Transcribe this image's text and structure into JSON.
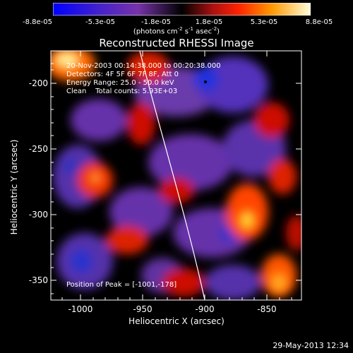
{
  "colorbar": {
    "ticks": [
      "-8.8e-05",
      "-5.3e-05",
      "-1.8e-05",
      "1.8e-05",
      "5.3e-05",
      "8.8e-05"
    ],
    "units_main": "(photons cm",
    "units_sup1": "-2",
    "units_mid": " s",
    "units_sup2": "-1",
    "units_mid2": " asec",
    "units_sup3": "-2",
    "units_end": ")"
  },
  "title": "Reconstructed RHESSI Image",
  "info": {
    "time_range": "20-Nov-2003 00:14:38.000 to 00:20:38.000",
    "detectors": "Detectors: 4F 5F 6F 7F 8F, Att 0",
    "energy": "Energy Range: 25.0 - 50.0 keV",
    "clean": "Clean    Total counts: 5.93E+03",
    "peak": "Position of Peak = [-1001,-178]"
  },
  "axes": {
    "xlabel": "Heliocentric X (arcsec)",
    "ylabel": "Heliocentric Y (arcsec)",
    "xticks": [
      "-1000",
      "-950",
      "-900",
      "-850"
    ],
    "yticks": [
      "-200",
      "-250",
      "-300",
      "-350"
    ]
  },
  "colors": {
    "limb": "#ffffff",
    "background": "#000000"
  },
  "timestamp": "29-May-2013 12:34"
}
